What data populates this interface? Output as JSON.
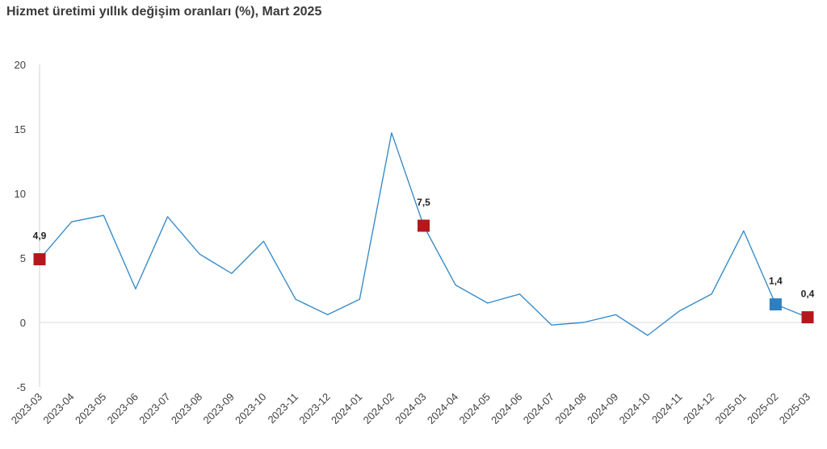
{
  "title": "Hizmet üretimi yıllık değişim oranları (%), Mart 2025",
  "chart_data": {
    "type": "line",
    "title": "Hizmet üretimi yıllık değişim oranları (%), Mart 2025",
    "xlabel": "",
    "ylabel": "",
    "ylim": [
      -5,
      20
    ],
    "yticks": [
      -5,
      0,
      5,
      10,
      15,
      20
    ],
    "grid": false,
    "categories": [
      "2023-03",
      "2023-04",
      "2023-05",
      "2023-06",
      "2023-07",
      "2023-08",
      "2023-09",
      "2023-10",
      "2023-11",
      "2023-12",
      "2024-01",
      "2024-02",
      "2024-03",
      "2024-04",
      "2024-05",
      "2024-06",
      "2024-07",
      "2024-08",
      "2024-09",
      "2024-10",
      "2024-11",
      "2024-12",
      "2025-01",
      "2025-02",
      "2025-03"
    ],
    "series": [
      {
        "color": "#3a8cc8",
        "values": [
          4.9,
          7.8,
          8.3,
          2.6,
          8.2,
          5.3,
          3.8,
          6.3,
          1.8,
          0.6,
          1.8,
          14.7,
          7.5,
          2.9,
          1.5,
          2.2,
          -0.2,
          0.0,
          0.6,
          -1.0,
          0.9,
          2.2,
          7.1,
          1.4,
          0.4
        ]
      }
    ],
    "highlights": [
      {
        "index": 0,
        "label": "4,9",
        "color": "#b5171d"
      },
      {
        "index": 12,
        "label": "7,5",
        "color": "#b5171d"
      },
      {
        "index": 23,
        "label": "1,4",
        "color": "#2e7fc0"
      },
      {
        "index": 24,
        "label": "0,4",
        "color": "#b5171d"
      }
    ],
    "zero_line_color": "#d9d9d9",
    "axis_color": "#d0d0d0"
  }
}
